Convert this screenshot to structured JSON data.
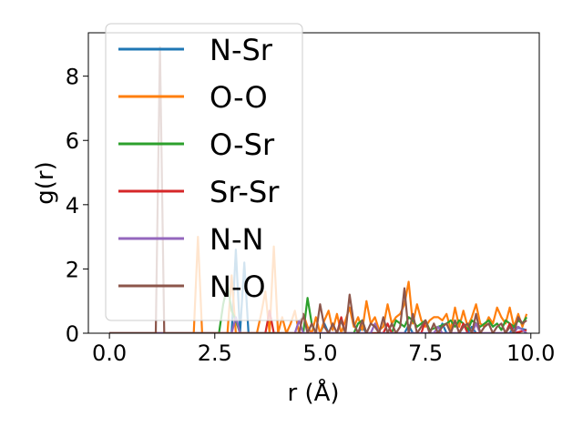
{
  "chart_data": {
    "type": "line",
    "xlabel": "r (Å)",
    "ylabel": "g(r)",
    "xlim": [
      -0.5,
      10.2
    ],
    "ylim": [
      0,
      9.35
    ],
    "xticks": [
      0.0,
      2.5,
      5.0,
      7.5,
      10.0
    ],
    "xtick_labels": [
      "0.0",
      "2.5",
      "5.0",
      "7.5",
      "10.0"
    ],
    "yticks": [
      0,
      2,
      4,
      6,
      8
    ],
    "ytick_labels": [
      "0",
      "2",
      "4",
      "6",
      "8"
    ],
    "grid": false,
    "legend_position": "upper-left",
    "series": [
      {
        "name": "N-Sr",
        "color": "#1f77b4",
        "x": [
          0,
          2.9,
          3.0,
          3.1,
          3.2,
          3.3,
          5.0,
          5.1,
          5.2,
          5.9,
          6.0,
          6.1,
          7.0,
          7.1,
          7.2,
          7.8,
          7.9,
          8.0,
          8.5,
          8.6,
          8.7,
          9.5,
          9.6,
          9.9
        ],
        "y": [
          0,
          0,
          2.6,
          0,
          2.2,
          0,
          0,
          0.3,
          0,
          0,
          0.2,
          0,
          0,
          0.25,
          0,
          0,
          0.3,
          0,
          0,
          0.2,
          0,
          0,
          0.2,
          0.1
        ]
      },
      {
        "name": "O-O",
        "color": "#ff7f0e",
        "x": [
          0,
          2.0,
          2.1,
          2.2,
          2.8,
          2.9,
          3.0,
          3.5,
          3.6,
          3.7,
          3.8,
          3.9,
          4.0,
          4.1,
          4.2,
          4.3,
          4.4,
          4.5,
          4.6,
          4.7,
          4.8,
          4.9,
          5.0,
          5.1,
          5.2,
          5.3,
          5.4,
          5.5,
          5.6,
          5.7,
          5.8,
          5.9,
          6.0,
          6.1,
          6.2,
          6.3,
          6.4,
          6.5,
          6.6,
          6.7,
          6.8,
          6.9,
          7.0,
          7.1,
          7.2,
          7.3,
          7.4,
          7.5,
          7.6,
          7.7,
          7.8,
          7.9,
          8.0,
          8.1,
          8.2,
          8.3,
          8.4,
          8.5,
          8.6,
          8.7,
          8.8,
          8.9,
          9.0,
          9.1,
          9.2,
          9.3,
          9.4,
          9.5,
          9.6,
          9.7,
          9.8,
          9.9
        ],
        "y": [
          0,
          0,
          3.0,
          0,
          0,
          1.8,
          0,
          0,
          0.6,
          1.3,
          0,
          2.7,
          0,
          0.5,
          0,
          0.3,
          0.7,
          0,
          0.6,
          0.2,
          0,
          0.5,
          0,
          0.4,
          0.7,
          0.1,
          0.6,
          0,
          0.4,
          0.8,
          0.2,
          0.5,
          0.1,
          1.0,
          0.3,
          0.5,
          0.1,
          0.2,
          0.9,
          0.3,
          0.5,
          0.6,
          0.9,
          1.6,
          0.3,
          0.9,
          0.4,
          0.2,
          0.4,
          0.5,
          0.5,
          0.4,
          0.6,
          0.1,
          0.8,
          0.2,
          0.7,
          0.2,
          0.5,
          0.9,
          0.3,
          0.2,
          0.5,
          0.3,
          0.8,
          0.5,
          0.3,
          0.8,
          0.2,
          0.6,
          0.2,
          0.6
        ]
      },
      {
        "name": "O-Sr",
        "color": "#2ca02c",
        "x": [
          0,
          2.6,
          2.7,
          2.8,
          2.9,
          3.0,
          3.1,
          4.6,
          4.7,
          4.8,
          4.9,
          5.0,
          5.8,
          5.9,
          6.0,
          6.1,
          6.7,
          6.8,
          6.9,
          7.0,
          7.1,
          7.2,
          7.3,
          7.4,
          7.5,
          7.6,
          8.0,
          8.1,
          8.2,
          8.3,
          8.4,
          8.5,
          8.6,
          8.7,
          8.8,
          8.9,
          9.0,
          9.1,
          9.2,
          9.3,
          9.4,
          9.5,
          9.6,
          9.7,
          9.8,
          9.9
        ],
        "y": [
          0,
          0,
          0.9,
          1.5,
          0.7,
          0.4,
          0,
          0,
          1.1,
          0.3,
          0,
          0,
          0,
          0.3,
          0.4,
          0,
          0,
          0.4,
          0.3,
          0.2,
          0.5,
          0.4,
          0.2,
          0.3,
          0.4,
          0.1,
          0.3,
          0.4,
          0.2,
          0.4,
          0.3,
          0.1,
          0.4,
          0.3,
          0.2,
          0.3,
          0.4,
          0.2,
          0.3,
          0.1,
          0.4,
          0.3,
          0.2,
          0.4,
          0.3,
          0.5
        ]
      },
      {
        "name": "Sr-Sr",
        "color": "#d62728",
        "x": [
          0,
          3.7,
          3.8,
          3.9,
          5.4,
          5.5,
          5.6,
          6.5,
          6.6,
          6.7,
          7.4,
          7.5,
          7.6,
          8.3,
          8.4,
          8.5,
          9.4,
          9.5,
          9.6,
          9.9
        ],
        "y": [
          0,
          0,
          0.7,
          0,
          0,
          0.5,
          0,
          0,
          0.3,
          0,
          0,
          0.4,
          0,
          0,
          0.3,
          0,
          0,
          0.3,
          0,
          0.1
        ]
      },
      {
        "name": "N-N",
        "color": "#9467bd",
        "x": [
          0,
          2.9,
          3.0,
          3.1,
          4.4,
          4.5,
          4.6,
          6.2,
          6.3,
          6.4,
          7.7,
          7.8,
          7.9,
          8.6,
          8.7,
          8.8,
          9.6,
          9.7,
          9.9
        ],
        "y": [
          0,
          0,
          0.5,
          0,
          0,
          0.4,
          0,
          0,
          0.3,
          0,
          0,
          0.2,
          0,
          0,
          0.3,
          0,
          0,
          0.2,
          0
        ]
      },
      {
        "name": "N-O",
        "color": "#8c564b",
        "x": [
          0,
          1.1,
          1.2,
          1.3,
          4.5,
          4.6,
          4.7,
          4.8,
          4.9,
          5.0,
          5.1,
          5.2,
          5.3,
          5.4,
          5.5,
          5.6,
          5.7,
          5.8,
          5.9,
          6.0,
          6.1,
          6.2,
          6.3,
          6.4,
          6.5,
          6.6,
          6.7,
          6.8,
          6.9,
          7.0,
          7.1,
          7.2,
          7.3,
          7.4,
          7.5,
          7.6,
          7.7,
          7.8,
          7.9,
          8.0,
          8.1,
          8.2,
          8.3,
          8.4,
          8.5,
          8.6,
          8.7,
          8.8,
          8.9,
          9.0,
          9.1,
          9.2,
          9.3,
          9.4,
          9.5,
          9.6,
          9.7,
          9.8,
          9.9
        ],
        "y": [
          0,
          0,
          8.9,
          0,
          0,
          0.6,
          0,
          0.3,
          0,
          0.9,
          0.2,
          0,
          0.3,
          0,
          0.4,
          0,
          1.2,
          0.3,
          0,
          0.4,
          0,
          0.3,
          0.2,
          0,
          0.5,
          0,
          0.3,
          0,
          0.2,
          1.4,
          0,
          0.6,
          0,
          0.2,
          0.4,
          0,
          0.3,
          0,
          0.2,
          0.3,
          0,
          0.4,
          0,
          0.2,
          0.3,
          0,
          0.6,
          0,
          0.2,
          0.3,
          0,
          0.2,
          0.3,
          0,
          0.2,
          0,
          0.5,
          0.3,
          0.4
        ]
      }
    ]
  }
}
